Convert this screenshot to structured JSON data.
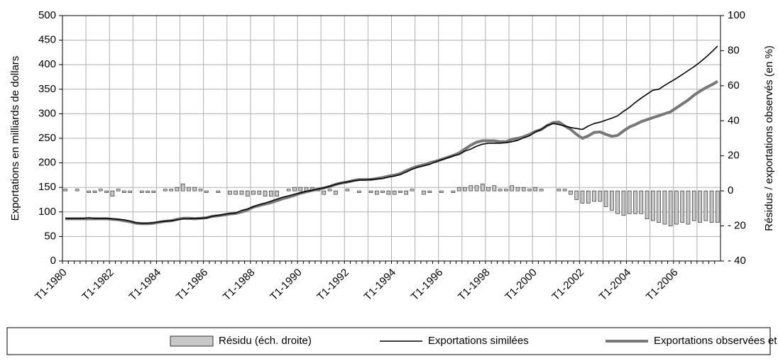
{
  "chart_data": {
    "type": "line",
    "y_label": "Exportations en milliards de dollars",
    "y2_label": "Résidus / exportations observés (en %)",
    "categories": [
      "T1-1980",
      null,
      null,
      null,
      null,
      null,
      null,
      null,
      "T1-1982",
      null,
      null,
      null,
      null,
      null,
      null,
      null,
      "T1-1984",
      null,
      null,
      null,
      null,
      null,
      null,
      null,
      "T1-1986",
      null,
      null,
      null,
      null,
      null,
      null,
      null,
      "T1-1988",
      null,
      null,
      null,
      null,
      null,
      null,
      null,
      "T1-1990",
      null,
      null,
      null,
      null,
      null,
      null,
      null,
      "T1-1992",
      null,
      null,
      null,
      null,
      null,
      null,
      null,
      "T1-1994",
      null,
      null,
      null,
      null,
      null,
      null,
      null,
      "T1-1996",
      null,
      null,
      null,
      null,
      null,
      null,
      null,
      "T1-1998",
      null,
      null,
      null,
      null,
      null,
      null,
      null,
      "T1-2000",
      null,
      null,
      null,
      null,
      null,
      null,
      null,
      "T1-2002",
      null,
      null,
      null,
      null,
      null,
      null,
      null,
      "T1-2004",
      null,
      null,
      null,
      null,
      null,
      null,
      null,
      "T1-2006",
      null,
      null,
      null,
      null,
      null,
      null,
      null
    ],
    "ylim": [
      0,
      500
    ],
    "yticks": [
      0,
      50,
      100,
      150,
      200,
      250,
      300,
      350,
      400,
      450,
      500
    ],
    "y2lim": [
      -40,
      100
    ],
    "y2ticks": [
      {
        "value": -40,
        "label": "- 40"
      },
      {
        "value": -20,
        "label": "- 20"
      },
      0,
      20,
      40,
      60,
      80,
      100
    ],
    "grid": true,
    "series": [
      {
        "name": "Résidu (éch. droite)",
        "type": "bar",
        "axis": "y2",
        "color": "#c8c8c8",
        "values": [
          1,
          0,
          1,
          0,
          -1,
          -1,
          1,
          -1,
          -3,
          1,
          -1,
          -1,
          0,
          -1,
          -1,
          -1,
          0,
          1,
          1,
          2,
          4,
          2,
          2,
          1,
          -1,
          0,
          -1,
          0,
          -2,
          -2,
          -2,
          -3,
          -2,
          -2,
          -3,
          -3,
          -3,
          0,
          1,
          2,
          2,
          2,
          2,
          1,
          -2,
          1,
          -2,
          0,
          1,
          0,
          -1,
          0,
          -1,
          -2,
          -1,
          -2,
          -2,
          -1,
          -2,
          1,
          0,
          -2,
          -1,
          0,
          -1,
          0,
          -1,
          2,
          2,
          3,
          3,
          4,
          2,
          3,
          1,
          1,
          3,
          2,
          2,
          1,
          2,
          1,
          0,
          0,
          1,
          1,
          -2,
          -5,
          -7,
          -7,
          -6,
          -6,
          -9,
          -11,
          -13,
          -14,
          -13,
          -13,
          -13,
          -16,
          -17,
          -18,
          -19,
          -20,
          -19,
          -18,
          -19,
          -17,
          -18,
          -17,
          -18,
          -18
        ]
      },
      {
        "name": "Exportations similées",
        "type": "line",
        "color": "#000000",
        "values": [
          87,
          87,
          87,
          87,
          88,
          87,
          87,
          87,
          86,
          85,
          84,
          81,
          78,
          77,
          77,
          78,
          80,
          81,
          82,
          84,
          86,
          86,
          87,
          87,
          88,
          91,
          93,
          95,
          97,
          98,
          103,
          106,
          111,
          115,
          118,
          122,
          126,
          130,
          133,
          136,
          139,
          142,
          144,
          147,
          149,
          152,
          156,
          159,
          161,
          163,
          165,
          165,
          166,
          167,
          168,
          171,
          173,
          176,
          181,
          187,
          191,
          194,
          197,
          202,
          206,
          210,
          214,
          217,
          224,
          228,
          234,
          238,
          240,
          240,
          240,
          241,
          243,
          246,
          251,
          255,
          263,
          268,
          276,
          280,
          278,
          275,
          272,
          270,
          268,
          275,
          280,
          283,
          287,
          291,
          296,
          305,
          313,
          323,
          332,
          340,
          348,
          350,
          358,
          365,
          372,
          380,
          388,
          396,
          405,
          415,
          426,
          438
        ]
      },
      {
        "name": "Exportations observées et prévues",
        "type": "line",
        "color": "#777777",
        "values": [
          86,
          86,
          86,
          86,
          86,
          86,
          86,
          86,
          85,
          84,
          82,
          80,
          77,
          76,
          76,
          77,
          79,
          81,
          82,
          85,
          87,
          87,
          86,
          87,
          88,
          91,
          92,
          94,
          96,
          97,
          100,
          104,
          110,
          113,
          116,
          119,
          123,
          127,
          130,
          134,
          138,
          141,
          144,
          146,
          149,
          152,
          156,
          159,
          161,
          164,
          166,
          166,
          166,
          168,
          170,
          173,
          175,
          178,
          184,
          189,
          193,
          196,
          200,
          203,
          207,
          211,
          215,
          220,
          228,
          236,
          242,
          245,
          245,
          245,
          243,
          243,
          248,
          250,
          253,
          258,
          264,
          268,
          276,
          282,
          283,
          275,
          268,
          258,
          250,
          255,
          262,
          263,
          258,
          254,
          256,
          265,
          273,
          278,
          284,
          288,
          292,
          296,
          300,
          304,
          312,
          320,
          328,
          338,
          346,
          353,
          359,
          366
        ]
      }
    ]
  }
}
